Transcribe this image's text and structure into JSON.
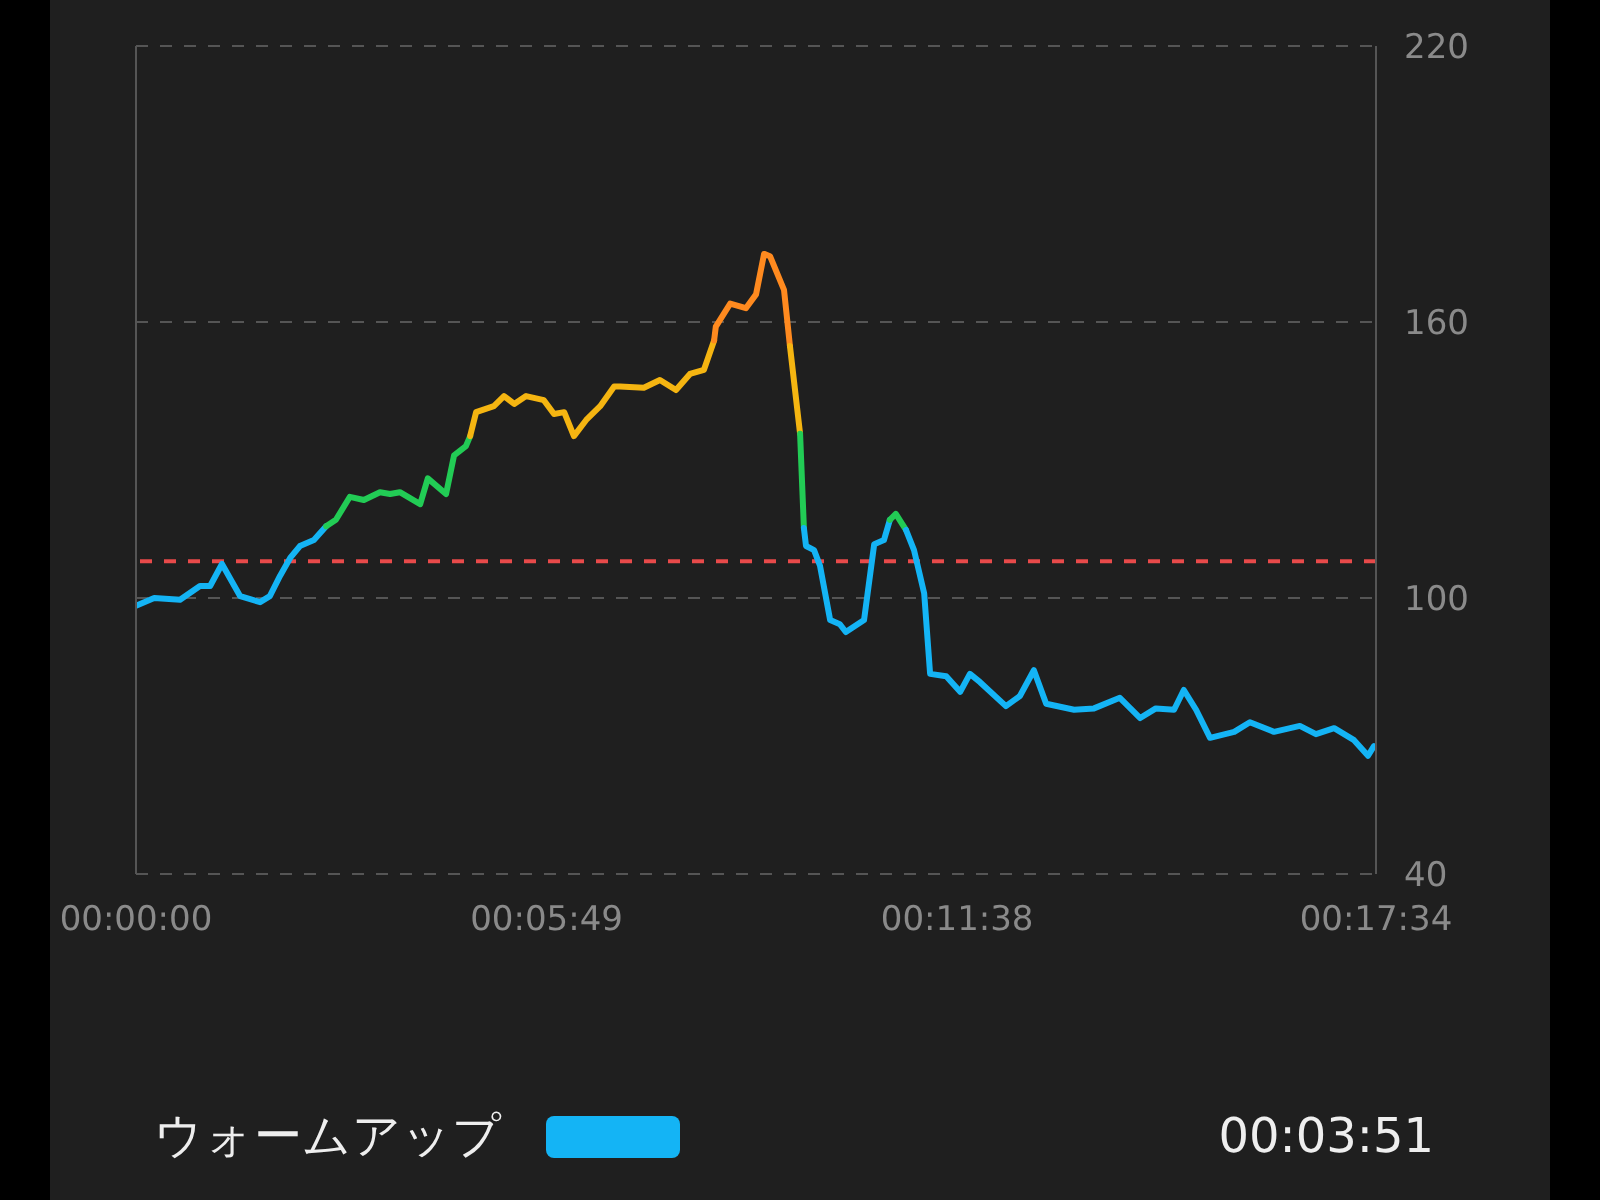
{
  "chart_data": {
    "type": "line",
    "xlim": [
      0,
      0.29278
    ],
    "xticks": [
      {
        "value": 0,
        "label": "00:00:00"
      },
      {
        "value": 0.096944,
        "label": "00:05:49"
      },
      {
        "value": 0.193889,
        "label": "00:11:38"
      },
      {
        "value": 0.292778,
        "label": "00:17:34"
      }
    ],
    "ylim": [
      40,
      220
    ],
    "yticks": [
      40,
      100,
      160,
      220
    ],
    "grid": "y",
    "legend": "bottom",
    "marker": "none",
    "line_style": "solid",
    "ref_lines": [
      {
        "axis": "y",
        "value": 108,
        "color": "#e84a4a",
        "line_style": "dashed"
      }
    ],
    "annotations": [
      "00:03:51"
    ],
    "series": [
      {
        "name": "ウォームアップ",
        "color": "#14b4f5",
        "x": [
          0,
          0.0043,
          0.0104,
          0.0151,
          0.0175,
          0.0203,
          0.0246,
          0.0293,
          0.0316,
          0.034,
          0.0364,
          0.0387,
          0.042,
          0.0449
        ],
        "values": [
          98.3,
          100,
          99.6,
          102.6,
          102.6,
          107.4,
          100.4,
          99.1,
          100.4,
          104.8,
          108.7,
          111.3,
          112.6,
          115.6
        ]
      },
      {
        "color": "#22cc55",
        "x": [
          0.0449,
          0.0472,
          0.0505,
          0.0538,
          0.0576,
          0.06,
          0.0623,
          0.0671,
          0.0689,
          0.0732,
          0.0751,
          0.0779,
          0.0789
        ],
        "values": [
          115.6,
          117,
          122,
          121.3,
          123,
          122.6,
          123,
          120.4,
          126,
          122.6,
          131,
          133,
          135.2
        ]
      },
      {
        "color": "#f5b511",
        "x": [
          0.0789,
          0.0803,
          0.0845,
          0.0869,
          0.0893,
          0.0921,
          0.0963,
          0.0987,
          0.1011,
          0.1034,
          0.1063,
          0.1096,
          0.1129,
          0.1143,
          0.1199,
          0.1237,
          0.1275,
          0.1308,
          0.1341,
          0.1365
        ],
        "values": [
          135.2,
          140.4,
          141.7,
          143.9,
          142.2,
          143.9,
          143,
          140,
          140.4,
          135.2,
          138.7,
          141.7,
          146,
          146,
          145.7,
          147.4,
          145.2,
          148.7,
          149.6,
          156
        ]
      },
      {
        "color": "#ff8a1f",
        "x": [
          0.1365,
          0.1369,
          0.1403,
          0.144,
          0.1464,
          0.1483,
          0.1497,
          0.153,
          0.1544
        ],
        "values": [
          156,
          159,
          164,
          163,
          166,
          174.8,
          174.3,
          167,
          154.8
        ]
      },
      {
        "color": "#f5b511",
        "x": [
          0.1544,
          0.1568
        ],
        "values": [
          154.8,
          135.7
        ]
      },
      {
        "color": "#22cc55",
        "x": [
          0.1568,
          0.1577
        ],
        "values": [
          135.7,
          115.2
        ]
      },
      {
        "color": "#14b4f5",
        "x": [
          0.1577,
          0.1582,
          0.1601,
          0.1615,
          0.1639,
          0.1662,
          0.1676,
          0.1719,
          0.1743,
          0.1766,
          0.178
        ],
        "values": [
          115.2,
          111.3,
          110.4,
          107,
          95.2,
          94.3,
          92.6,
          95.2,
          111.7,
          112.6,
          117
        ]
      },
      {
        "color": "#22cc55",
        "x": [
          0.178,
          0.1794,
          0.1818
        ],
        "values": [
          117,
          118.3,
          114.8
        ]
      },
      {
        "color": "#14b4f5",
        "x": [
          0.1818,
          0.1837,
          0.1861,
          0.1875,
          0.1913,
          0.1946,
          0.1969,
          0.1993,
          0.2054,
          0.2087,
          0.212,
          0.2149,
          0.2215,
          0.2262,
          0.2323,
          0.2371,
          0.2408,
          0.2451,
          0.2474,
          0.2503,
          0.2536,
          0.2593,
          0.263,
          0.2687,
          0.2748,
          0.2786,
          0.2829,
          0.2876,
          0.2909,
          0.2923
        ],
        "values": [
          114.8,
          110.4,
          101,
          83.5,
          83,
          79.6,
          83.5,
          81.7,
          76.5,
          78.7,
          84.3,
          77,
          75.7,
          76,
          78.3,
          73.9,
          76,
          75.7,
          80,
          75.7,
          69.6,
          70.9,
          73,
          70.9,
          72.2,
          70.4,
          71.7,
          69.1,
          65.7,
          67.8
        ]
      }
    ]
  }
}
